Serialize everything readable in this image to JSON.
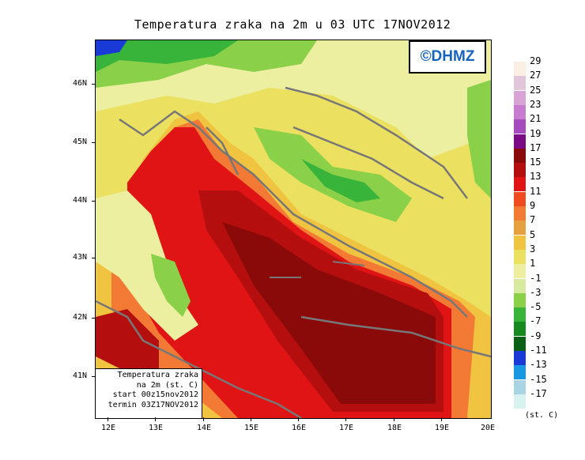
{
  "title": "Temperatura zraka na 2m u 03 UTC 17NOV2012",
  "logo": "©DHMZ",
  "info": {
    "line1": "Temperatura zraka",
    "line2": "na 2m (st. C)",
    "line3": "start 00z15nov2012",
    "line4": "termin 03Z17NOV2012"
  },
  "lat_labels": [
    "46N",
    "45N",
    "44N",
    "43N",
    "42N",
    "41N"
  ],
  "lon_labels": [
    "12E",
    "13E",
    "14E",
    "15E",
    "16E",
    "17E",
    "18E",
    "19E",
    "20E"
  ],
  "legend": {
    "levels": [
      "29",
      "27",
      "25",
      "23",
      "21",
      "19",
      "17",
      "15",
      "13",
      "11",
      "9",
      "7",
      "5",
      "3",
      "1",
      "-1",
      "-3",
      "-5",
      "-7",
      "-9",
      "-11",
      "-13",
      "-15",
      "-17"
    ],
    "colors": [
      "#fbeee2",
      "#e0c6d8",
      "#d7a4d5",
      "#c77ccf",
      "#a64ac0",
      "#7a0a86",
      "#8a0a0a",
      "#b40e0e",
      "#e01414",
      "#f04a20",
      "#f27a34",
      "#e6a040",
      "#f0c440",
      "#ece060",
      "#eceea0",
      "#d8eaa0",
      "#8ad048",
      "#38b43a",
      "#168a1e",
      "#0a6014",
      "#1a3ad8",
      "#1898e0",
      "#a8d4e4",
      "#d8f2f2"
    ],
    "unit": "(st. C)"
  }
}
